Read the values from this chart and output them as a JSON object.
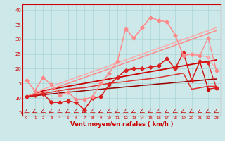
{
  "x": [
    0,
    1,
    2,
    3,
    4,
    5,
    6,
    7,
    8,
    9,
    10,
    11,
    12,
    13,
    14,
    15,
    16,
    17,
    18,
    19,
    20,
    21,
    22,
    23
  ],
  "series": [
    {
      "color": "#cc0000",
      "marker": "D",
      "markersize": 2.5,
      "linewidth": 0.9,
      "y": [
        10.5,
        11.0,
        11.5,
        8.5,
        8.5,
        9.0,
        8.5,
        6.0,
        10.0,
        10.5,
        14.5,
        17.0,
        19.5,
        20.0,
        20.0,
        20.5,
        21.0,
        23.5,
        20.0,
        25.5,
        16.0,
        22.5,
        13.0,
        13.5
      ]
    },
    {
      "color": "#dd2222",
      "marker": "D",
      "markersize": 2.5,
      "linewidth": 0.9,
      "y": [
        10.5,
        11.0,
        11.5,
        8.5,
        8.5,
        9.0,
        8.5,
        6.0,
        10.0,
        10.5,
        14.5,
        17.0,
        19.5,
        20.0,
        20.0,
        20.5,
        21.0,
        23.5,
        20.0,
        25.5,
        16.0,
        22.5,
        22.0,
        13.5
      ]
    },
    {
      "color": "#ffaaaa",
      "marker": "D",
      "markersize": 2.5,
      "linewidth": 0.9,
      "y": [
        16.0,
        12.5,
        17.0,
        14.5,
        11.0,
        12.0,
        9.5,
        9.5,
        10.5,
        15.0,
        18.5,
        22.5,
        33.5,
        30.5,
        34.0,
        37.5,
        36.5,
        36.0,
        31.5,
        24.5,
        25.0,
        24.5,
        24.0,
        19.5
      ]
    },
    {
      "color": "#ff8888",
      "marker": "D",
      "markersize": 2.5,
      "linewidth": 0.9,
      "y": [
        16.0,
        12.5,
        17.0,
        14.5,
        11.0,
        12.0,
        9.5,
        9.5,
        10.5,
        15.0,
        18.5,
        22.5,
        33.5,
        30.5,
        34.0,
        37.5,
        36.5,
        36.0,
        31.5,
        24.5,
        25.0,
        24.5,
        30.5,
        19.5
      ]
    },
    {
      "color": "#cc0000",
      "marker": null,
      "markersize": 0,
      "linewidth": 1.3,
      "y": [
        10.5,
        11.5,
        12.5,
        13.0,
        13.5,
        14.0,
        14.5,
        15.0,
        15.5,
        16.0,
        16.5,
        17.0,
        17.5,
        18.0,
        18.5,
        19.0,
        19.5,
        20.0,
        20.5,
        21.0,
        21.5,
        22.0,
        22.5,
        23.0
      ]
    },
    {
      "color": "#dd3333",
      "marker": null,
      "markersize": 0,
      "linewidth": 1.1,
      "y": [
        10.5,
        11.0,
        11.5,
        12.0,
        12.5,
        13.0,
        13.3,
        13.5,
        14.0,
        14.5,
        15.0,
        15.3,
        15.6,
        16.0,
        16.3,
        16.6,
        17.0,
        17.5,
        18.0,
        18.5,
        13.0,
        13.5,
        14.0,
        14.0
      ]
    },
    {
      "color": "#990000",
      "marker": null,
      "markersize": 0,
      "linewidth": 1.1,
      "y": [
        10.5,
        10.8,
        11.1,
        11.4,
        11.7,
        12.0,
        12.2,
        12.5,
        12.8,
        13.0,
        13.3,
        13.5,
        13.8,
        14.0,
        14.3,
        14.5,
        14.8,
        15.0,
        15.3,
        15.5,
        15.8,
        16.0,
        16.3,
        16.5
      ]
    },
    {
      "color": "#ffaaaa",
      "marker": null,
      "markersize": 0,
      "linewidth": 1.1,
      "y": [
        10.5,
        11.5,
        13.0,
        14.0,
        15.0,
        16.0,
        17.0,
        18.0,
        19.0,
        20.0,
        21.0,
        22.0,
        23.0,
        24.0,
        25.0,
        26.0,
        27.0,
        28.0,
        29.0,
        30.0,
        31.0,
        32.0,
        33.0,
        34.0
      ]
    },
    {
      "color": "#ff8888",
      "marker": null,
      "markersize": 0,
      "linewidth": 1.1,
      "y": [
        10.5,
        11.2,
        12.0,
        13.0,
        14.0,
        15.0,
        16.0,
        17.0,
        18.0,
        19.0,
        20.0,
        21.0,
        22.0,
        23.0,
        24.0,
        25.0,
        26.0,
        27.0,
        28.0,
        29.0,
        30.0,
        31.0,
        32.0,
        33.0
      ]
    }
  ],
  "arrows": {
    "x": [
      0,
      1,
      2,
      3,
      4,
      5,
      6,
      7,
      8,
      9,
      10,
      11,
      12,
      13,
      14,
      15,
      16,
      17,
      18,
      19,
      20,
      21,
      22,
      23
    ],
    "y": 5.2,
    "color": "#cc0000"
  },
  "xlabel": "Vent moyen/en rafales ( km/h )",
  "xlim": [
    -0.5,
    23.5
  ],
  "ylim": [
    4,
    42
  ],
  "yticks": [
    5,
    10,
    15,
    20,
    25,
    30,
    35,
    40
  ],
  "xticks": [
    0,
    1,
    2,
    3,
    4,
    5,
    6,
    7,
    8,
    9,
    10,
    11,
    12,
    13,
    14,
    15,
    16,
    17,
    18,
    19,
    20,
    21,
    22,
    23
  ],
  "bg_color": "#cce8e8",
  "grid_color": "#aad4d4",
  "text_color": "#cc0000"
}
